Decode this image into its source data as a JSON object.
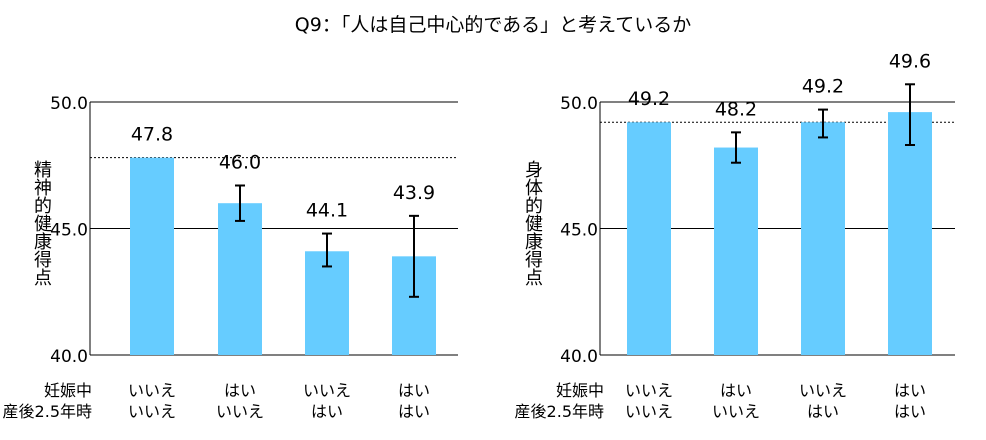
{
  "figure": {
    "title": "Q9：「人は自己中心的である」と考えているか"
  },
  "row_labels": [
    "妊娠中",
    "産後2.5年時"
  ],
  "chart_data": [
    {
      "type": "bar",
      "ylabel": "精神的健康得点",
      "ylim": [
        40,
        50
      ],
      "yticks": [
        "40.0",
        "45.0",
        "50.0"
      ],
      "ytick_values": [
        40,
        45,
        50
      ],
      "reference_line": 47.8,
      "categories": [
        {
          "pregnancy": "いいえ",
          "postpartum": "いいえ"
        },
        {
          "pregnancy": "はい",
          "postpartum": "いいえ"
        },
        {
          "pregnancy": "いいえ",
          "postpartum": "はい"
        },
        {
          "pregnancy": "はい",
          "postpartum": "はい"
        }
      ],
      "values": [
        47.8,
        46.0,
        44.1,
        43.9
      ],
      "value_labels": [
        "47.8",
        "46.0",
        "44.1",
        "43.9"
      ],
      "error_low": [
        null,
        45.3,
        43.5,
        42.3
      ],
      "error_high": [
        null,
        46.7,
        44.8,
        45.5
      ],
      "bar_color": "#66ccff"
    },
    {
      "type": "bar",
      "ylabel": "身体的健康得点",
      "ylim": [
        40,
        50
      ],
      "yticks": [
        "40.0",
        "45.0",
        "50.0"
      ],
      "ytick_values": [
        40,
        45,
        50
      ],
      "reference_line": 49.2,
      "categories": [
        {
          "pregnancy": "いいえ",
          "postpartum": "いいえ"
        },
        {
          "pregnancy": "はい",
          "postpartum": "いいえ"
        },
        {
          "pregnancy": "いいえ",
          "postpartum": "はい"
        },
        {
          "pregnancy": "はい",
          "postpartum": "はい"
        }
      ],
      "values": [
        49.2,
        48.2,
        49.2,
        49.6
      ],
      "value_labels": [
        "49.2",
        "48.2",
        "49.2",
        "49.6"
      ],
      "error_low": [
        null,
        47.6,
        48.6,
        48.3
      ],
      "error_high": [
        null,
        48.8,
        49.7,
        50.7
      ],
      "bar_color": "#66ccff"
    }
  ]
}
